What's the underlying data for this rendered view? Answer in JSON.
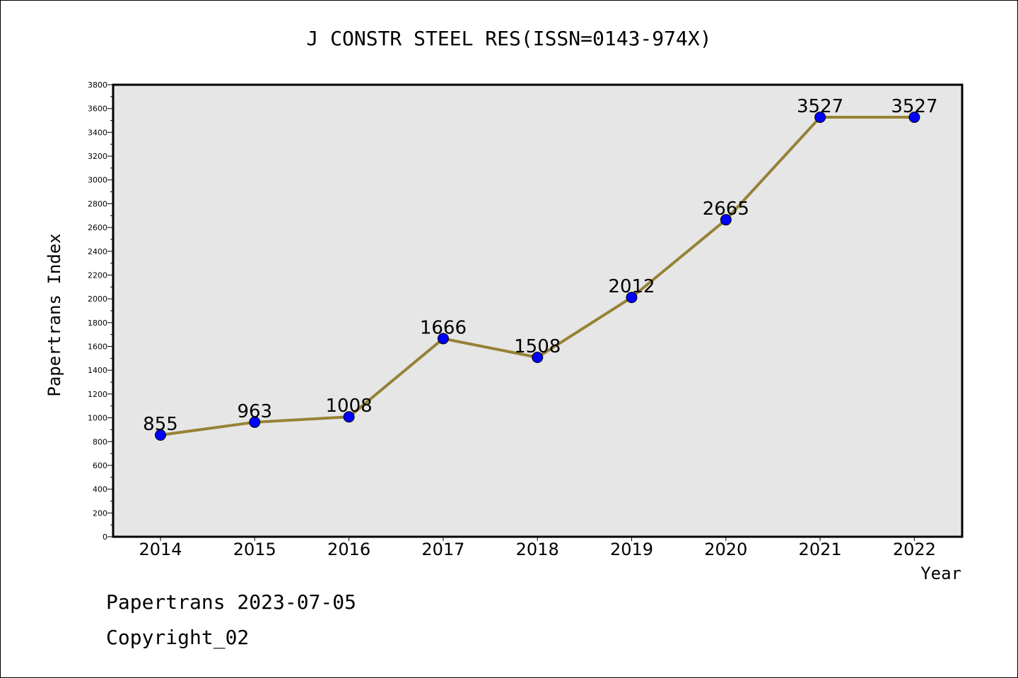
{
  "chart_data": {
    "type": "line",
    "title": "J CONSTR STEEL RES(ISSN=0143-974X)",
    "xlabel": "Year",
    "ylabel": "Papertrans Index",
    "categories": [
      "2014",
      "2015",
      "2016",
      "2017",
      "2018",
      "2019",
      "2020",
      "2021",
      "2022"
    ],
    "values": [
      855,
      963,
      1008,
      1666,
      1508,
      2012,
      2665,
      3527,
      3527
    ],
    "data_labels": [
      "855",
      "963",
      "1008",
      "1666",
      "1508",
      "2012",
      "2665",
      "3527",
      "3527"
    ],
    "ylim": [
      0,
      3800
    ],
    "y_ticks": [
      0,
      200,
      400,
      600,
      800,
      1000,
      1200,
      1400,
      1600,
      1800,
      2000,
      2200,
      2400,
      2600,
      2800,
      3000,
      3200,
      3400,
      3600,
      3800
    ],
    "grid": false,
    "colors": {
      "line": "#968236",
      "marker": "#0000ff",
      "plot_background": "#e6e6e6"
    }
  },
  "footer": {
    "date_text": "Papertrans 2023-07-05",
    "copyright_text": "Copyright_02"
  }
}
